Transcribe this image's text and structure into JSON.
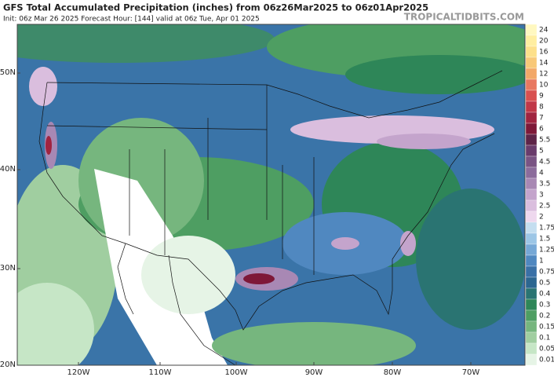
{
  "header": {
    "title": "GFS Total Accumulated Precipitation (inches) from 06z26Mar2025 to 06z01Apr2025",
    "subtitle": "Init: 06z Mar 26 2025   Forecast Hour: [144]   valid at 06z Tue, Apr 01 2025",
    "site": "TROPICALTIDBITS.COM"
  },
  "lat_labels": [
    "50N",
    "40N",
    "30N",
    "20N"
  ],
  "lon_labels": [
    "120W",
    "110W",
    "100W",
    "90W",
    "80W",
    "70W"
  ],
  "colorbar": [
    {
      "label": "24",
      "color": "#fff8c0"
    },
    {
      "label": "20",
      "color": "#ffeea0"
    },
    {
      "label": "16",
      "color": "#fde08a"
    },
    {
      "label": "14",
      "color": "#f8c878"
    },
    {
      "label": "12",
      "color": "#f2a868"
    },
    {
      "label": "10",
      "color": "#e87860"
    },
    {
      "label": "9",
      "color": "#d85050"
    },
    {
      "label": "8",
      "color": "#c03848"
    },
    {
      "label": "7",
      "color": "#a02440"
    },
    {
      "label": "6",
      "color": "#7e1838"
    },
    {
      "label": "5.5",
      "color": "#5e2448"
    },
    {
      "label": "5",
      "color": "#6a3c6c"
    },
    {
      "label": "4.5",
      "color": "#7a5484"
    },
    {
      "label": "4",
      "color": "#8c6c9c"
    },
    {
      "label": "3.5",
      "color": "#a888b4"
    },
    {
      "label": "3",
      "color": "#c4a4cc"
    },
    {
      "label": "2.5",
      "color": "#dabede"
    },
    {
      "label": "2",
      "color": "#eed8ee"
    },
    {
      "label": "1.75",
      "color": "#c4def0"
    },
    {
      "label": "1.5",
      "color": "#9cc6e6"
    },
    {
      "label": "1.25",
      "color": "#76a8d6"
    },
    {
      "label": "1",
      "color": "#5088c0"
    },
    {
      "label": "0.75",
      "color": "#3a70a6"
    },
    {
      "label": "0.5",
      "color": "#2c6690"
    },
    {
      "label": "0.4",
      "color": "#2a7472"
    },
    {
      "label": "0.3",
      "color": "#2e8658"
    },
    {
      "label": "0.2",
      "color": "#4e9e62"
    },
    {
      "label": "0.15",
      "color": "#76b67e"
    },
    {
      "label": "0.1",
      "color": "#a0cea0"
    },
    {
      "label": "0.05",
      "color": "#c6e6c6"
    },
    {
      "label": "0.01",
      "color": "#e6f4e6"
    }
  ]
}
